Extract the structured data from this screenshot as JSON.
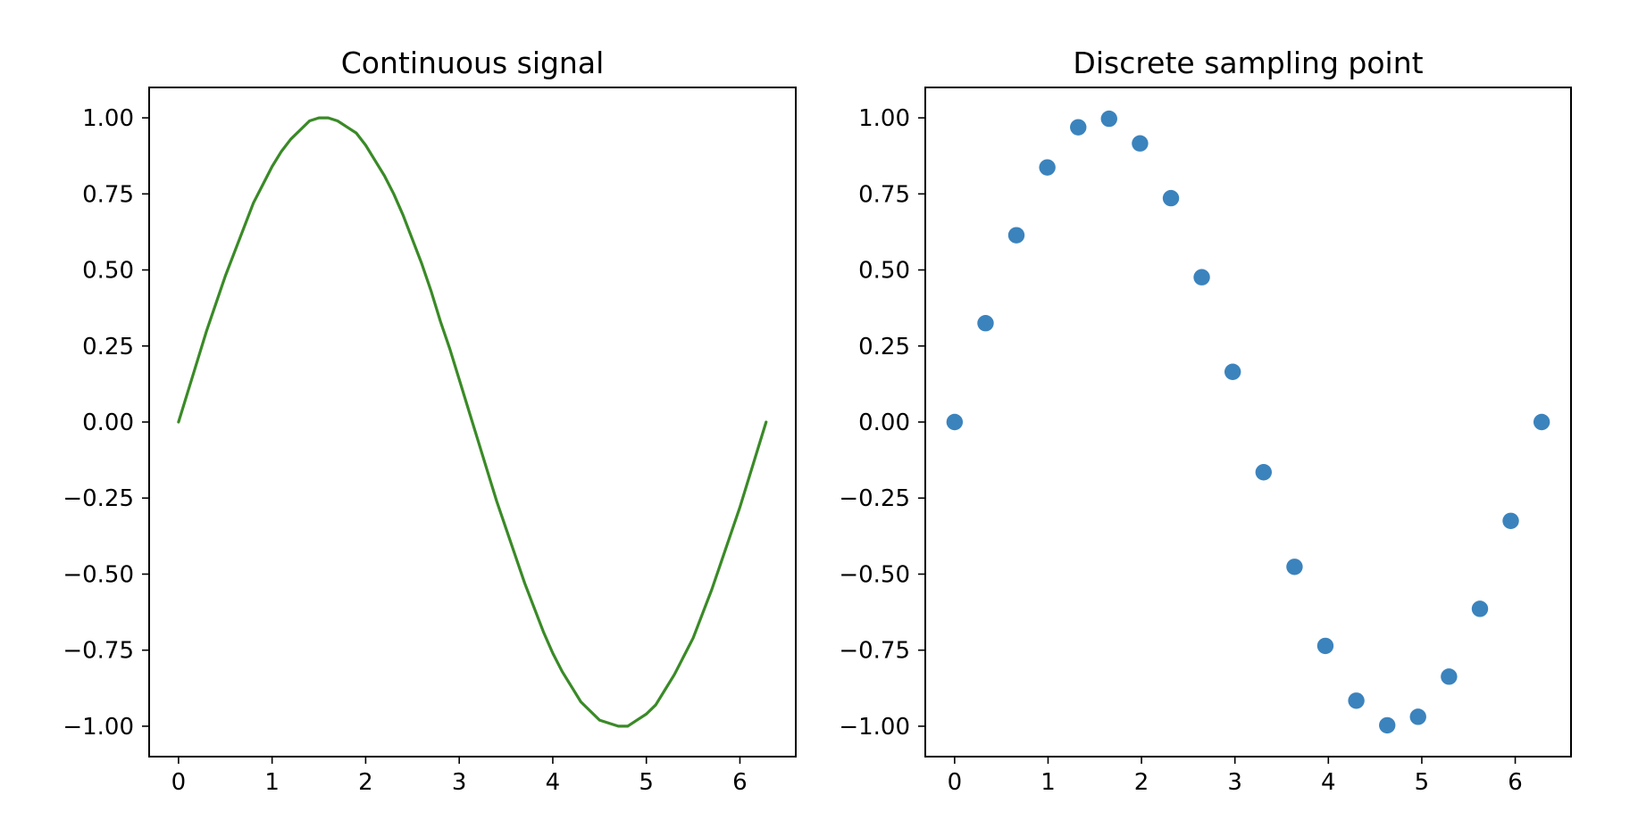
{
  "chart_data": [
    {
      "type": "line",
      "title": "Continuous signal",
      "xlabel": "",
      "ylabel": "",
      "xlim": [
        -0.314,
        6.597
      ],
      "ylim": [
        -1.1,
        1.1
      ],
      "x_ticks": [
        0,
        1,
        2,
        3,
        4,
        5,
        6
      ],
      "x_tick_labels": [
        "0",
        "1",
        "2",
        "3",
        "4",
        "5",
        "6"
      ],
      "y_ticks": [
        1.0,
        0.75,
        0.5,
        0.25,
        0.0,
        -0.25,
        -0.5,
        -0.75,
        -1.0
      ],
      "y_tick_labels": [
        "1.00",
        "0.75",
        "0.50",
        "0.25",
        "0.00",
        "−0.25",
        "−0.50",
        "−0.75",
        "−1.00"
      ],
      "grid": false,
      "series": [
        {
          "color": "#3a8a27",
          "x": [
            0.0,
            0.1,
            0.2,
            0.3,
            0.4,
            0.5,
            0.6,
            0.7,
            0.8,
            0.9,
            1.0,
            1.1,
            1.2,
            1.3,
            1.4,
            1.5,
            1.6,
            1.7,
            1.8,
            1.9,
            2.0,
            2.1,
            2.2,
            2.3,
            2.4,
            2.5,
            2.6,
            2.7,
            2.8,
            2.9,
            3.0,
            3.1,
            3.2,
            3.3,
            3.4,
            3.5,
            3.6,
            3.7,
            3.8,
            3.9,
            4.0,
            4.1,
            4.2,
            4.3,
            4.4,
            4.5,
            4.6,
            4.7,
            4.8,
            4.9,
            5.0,
            5.1,
            5.2,
            5.3,
            5.4,
            5.5,
            5.6,
            5.7,
            5.8,
            5.9,
            6.0,
            6.1,
            6.2,
            6.28
          ],
          "y": [
            0.0,
            0.1,
            0.2,
            0.3,
            0.39,
            0.48,
            0.56,
            0.64,
            0.72,
            0.78,
            0.84,
            0.89,
            0.93,
            0.96,
            0.99,
            1.0,
            1.0,
            0.99,
            0.97,
            0.95,
            0.91,
            0.86,
            0.81,
            0.75,
            0.68,
            0.6,
            0.52,
            0.43,
            0.33,
            0.24,
            0.14,
            0.04,
            -0.06,
            -0.16,
            -0.26,
            -0.35,
            -0.44,
            -0.53,
            -0.61,
            -0.69,
            -0.76,
            -0.82,
            -0.87,
            -0.92,
            -0.95,
            -0.98,
            -0.99,
            -1.0,
            -1.0,
            -0.98,
            -0.96,
            -0.93,
            -0.88,
            -0.83,
            -0.77,
            -0.71,
            -0.63,
            -0.55,
            -0.46,
            -0.37,
            -0.28,
            -0.18,
            -0.08,
            0.0
          ]
        }
      ]
    },
    {
      "type": "scatter",
      "title": "Discrete sampling point",
      "xlabel": "",
      "ylabel": "",
      "xlim": [
        -0.314,
        6.597
      ],
      "ylim": [
        -1.1,
        1.1
      ],
      "x_ticks": [
        0,
        1,
        2,
        3,
        4,
        5,
        6
      ],
      "x_tick_labels": [
        "0",
        "1",
        "2",
        "3",
        "4",
        "5",
        "6"
      ],
      "y_ticks": [
        1.0,
        0.75,
        0.5,
        0.25,
        0.0,
        -0.25,
        -0.5,
        -0.75,
        -1.0
      ],
      "y_tick_labels": [
        "1.00",
        "0.75",
        "0.50",
        "0.25",
        "0.00",
        "−0.25",
        "−0.50",
        "−0.75",
        "−1.00"
      ],
      "grid": false,
      "series": [
        {
          "color": "#3b83bd",
          "x": [
            0.0,
            0.331,
            0.661,
            0.992,
            1.323,
            1.653,
            1.984,
            2.315,
            2.645,
            2.976,
            3.307,
            3.638,
            3.968,
            4.299,
            4.63,
            4.96,
            5.291,
            5.622,
            5.952,
            6.283
          ],
          "y": [
            0.0,
            0.325,
            0.614,
            0.837,
            0.969,
            0.997,
            0.916,
            0.736,
            0.476,
            0.165,
            -0.165,
            -0.476,
            -0.736,
            -0.916,
            -0.997,
            -0.969,
            -0.837,
            -0.614,
            -0.325,
            0.0
          ]
        }
      ]
    }
  ]
}
